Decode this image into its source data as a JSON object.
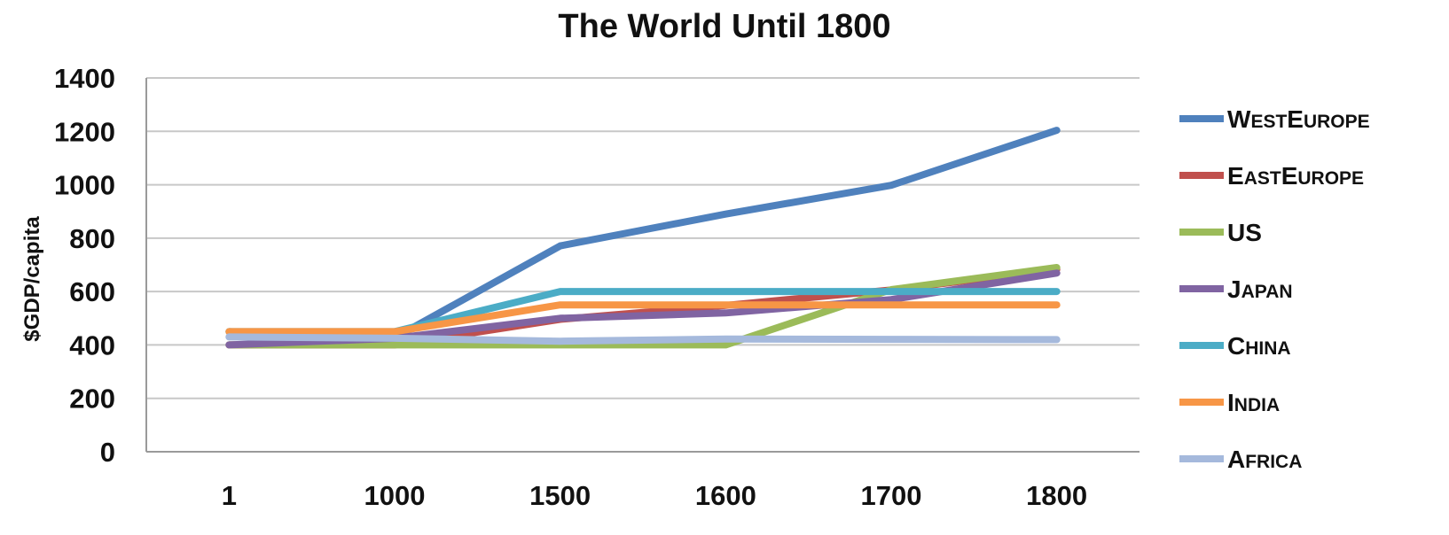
{
  "chart_data": {
    "type": "line",
    "title": "The World Until 1800",
    "xlabel": "",
    "ylabel": "$GDP/capita",
    "categories": [
      "1",
      "1000",
      "1500",
      "1600",
      "1700",
      "1800"
    ],
    "ylim": [
      0,
      1400
    ],
    "yticks": [
      "0",
      "200",
      "400",
      "600",
      "800",
      "1000",
      "1200",
      "1400"
    ],
    "grid": true,
    "legend_position": "right",
    "series": [
      {
        "name": "WestEurope",
        "color": "#4f81bd",
        "values": [
          450,
          427,
          771,
          890,
          998,
          1204
        ]
      },
      {
        "name": "EastEurope",
        "color": "#c0504d",
        "values": [
          400,
          400,
          496,
          548,
          606,
          683
        ]
      },
      {
        "name": "US",
        "color": "#9bbb59",
        "values": [
          400,
          400,
          400,
          400,
          607,
          690
        ]
      },
      {
        "name": "Japan",
        "color": "#8064a2",
        "values": [
          400,
          425,
          500,
          520,
          570,
          669
        ]
      },
      {
        "name": "China",
        "color": "#4bacc6",
        "values": [
          450,
          450,
          600,
          600,
          600,
          600
        ]
      },
      {
        "name": "India",
        "color": "#f79646",
        "values": [
          450,
          450,
          550,
          550,
          550,
          550
        ]
      },
      {
        "name": "Africa",
        "color": "#a5b9dc",
        "values": [
          430,
          425,
          414,
          422,
          421,
          420
        ]
      }
    ],
    "legend_labels": [
      {
        "big1": "W",
        "small1": "EST",
        "big2": "E",
        "small2": "UROPE"
      },
      {
        "big1": "E",
        "small1": "AST",
        "big2": "E",
        "small2": "UROPE"
      },
      {
        "big1": "US",
        "small1": "",
        "big2": "",
        "small2": ""
      },
      {
        "big1": "J",
        "small1": "APAN",
        "big2": "",
        "small2": ""
      },
      {
        "big1": "C",
        "small1": "HINA",
        "big2": "",
        "small2": ""
      },
      {
        "big1": "I",
        "small1": "NDIA",
        "big2": "",
        "small2": ""
      },
      {
        "big1": "A",
        "small1": "FRICA",
        "big2": "",
        "small2": ""
      }
    ]
  }
}
